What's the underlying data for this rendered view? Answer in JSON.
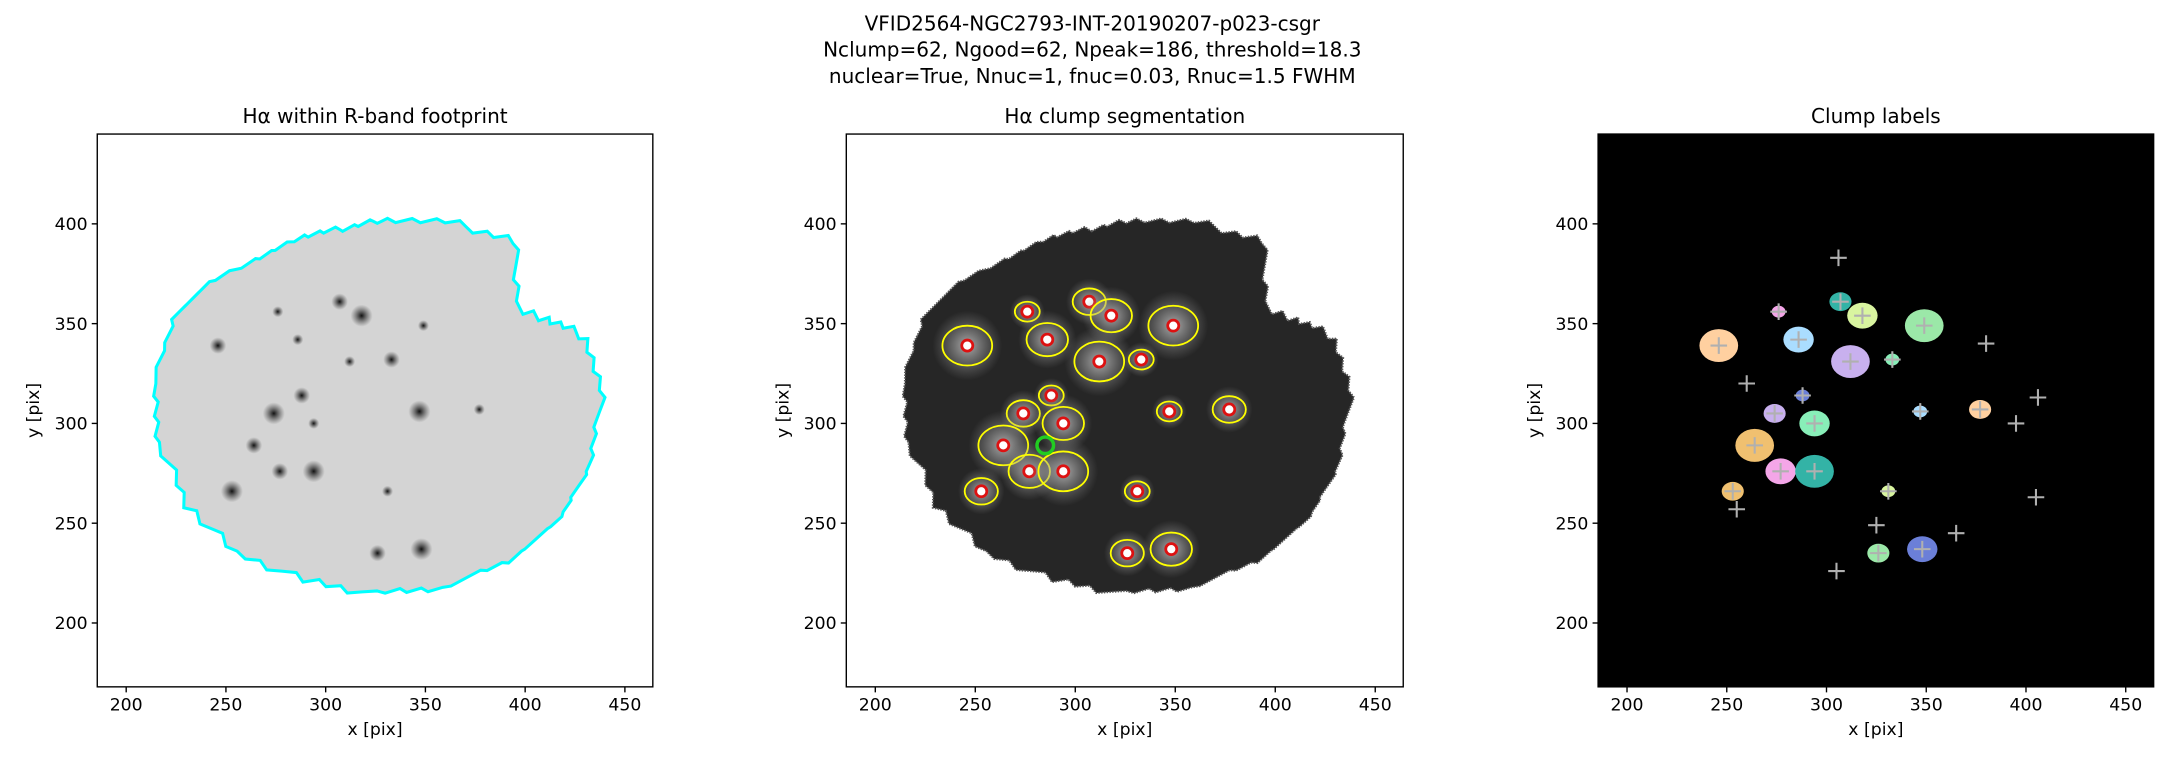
{
  "suptitle": [
    "VFID2564-NGC2793-INT-20190207-p023-csgr",
    "Nclump=62, Ngood=62, Npeak=186, threshold=18.3",
    "nuclear=True, Nnuc=1, fnuc=0.03, Rnuc=1.5 FWHM"
  ],
  "chart_data": [
    {
      "type": "image",
      "title": "Hα within R-band footprint",
      "xlabel": "x [pix]",
      "ylabel": "y [pix]",
      "xlim": [
        185.5,
        464
      ],
      "ylim": [
        168,
        445
      ],
      "xticks": [
        200,
        250,
        300,
        350,
        400,
        450
      ],
      "yticks": [
        200,
        250,
        300,
        350,
        400
      ],
      "fill": "#d4d4d4",
      "outline_color": "#00ffff"
    },
    {
      "type": "segmentation",
      "title": "Hα clump segmentation",
      "xlabel": "x [pix]",
      "ylabel": "y [pix]",
      "xlim": [
        185.5,
        464
      ],
      "ylim": [
        168,
        445
      ],
      "xticks": [
        200,
        250,
        300,
        350,
        400,
        450
      ],
      "yticks": [
        200,
        250,
        300,
        350,
        400
      ],
      "fill": "#262626",
      "contour_color": "#ffff00",
      "color": "#dd1111",
      "nucleus_color": "#22cc22",
      "x": [
        276,
        307,
        318,
        349,
        288,
        274,
        294,
        264,
        347,
        377,
        277,
        294,
        331,
        326,
        348,
        312,
        333,
        253,
        286,
        246
      ],
      "y": [
        356,
        361,
        354,
        349,
        314,
        305,
        300,
        289,
        306,
        307,
        276,
        276,
        266,
        235,
        237,
        331,
        332,
        266,
        342,
        339
      ],
      "nucleus": [
        285,
        289
      ]
    },
    {
      "type": "labels",
      "title": "Clump labels",
      "xlabel": "x [pix]",
      "ylabel": "y [pix]",
      "xlim": [
        185.5,
        464
      ],
      "ylim": [
        168,
        445
      ],
      "xticks": [
        200,
        250,
        300,
        350,
        400,
        450
      ],
      "yticks": [
        200,
        250,
        300,
        350,
        400
      ],
      "background": "#000000",
      "color": "#b0b0b0",
      "colors": [
        "#f4a6e8",
        "#33b3a6",
        "#d9f5a0",
        "#9be8a8",
        "#6b7fd8",
        "#c8b0ee",
        "#88eeb8",
        "#f0c070",
        "#aaddff",
        "#ffd0a0"
      ],
      "x": [
        276,
        307,
        318,
        349,
        288,
        274,
        294,
        264,
        347,
        377,
        277,
        294,
        331,
        326,
        348,
        312,
        333,
        253,
        286,
        246,
        306,
        406,
        405,
        325,
        305,
        255,
        365,
        395,
        380,
        260
      ],
      "y": [
        356,
        361,
        354,
        349,
        314,
        305,
        300,
        289,
        306,
        307,
        276,
        276,
        266,
        235,
        237,
        331,
        332,
        266,
        342,
        339,
        383,
        313,
        263,
        249,
        226,
        257,
        245,
        300,
        340,
        320
      ]
    }
  ]
}
